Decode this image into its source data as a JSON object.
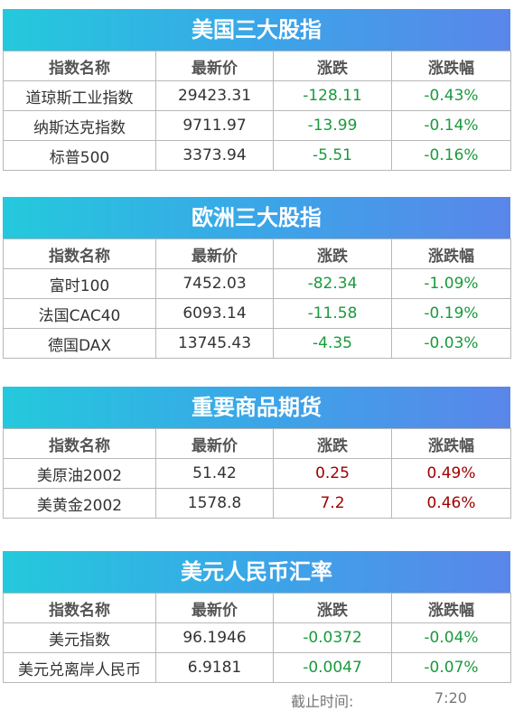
{
  "headers": [
    "指数名称",
    "最新价",
    "涨跌",
    "涨跌幅"
  ],
  "sections": [
    {
      "title": "美国三大股指",
      "rows": [
        {
          "name": "道琼斯工业指数",
          "price": "29423.31",
          "change": "-128.11",
          "pct": "-0.43%"
        },
        {
          "name": "纳斯达克指数",
          "price": "9711.97",
          "change": "-13.99",
          "pct": "-0.14%"
        },
        {
          "name": "标普500",
          "price": "3373.94",
          "change": "-5.51",
          "pct": "-0.16%"
        }
      ]
    },
    {
      "title": "欧洲三大股指",
      "rows": [
        {
          "name": "富时100",
          "price": "7452.03",
          "change": "-82.34",
          "pct": "-1.09%"
        },
        {
          "name": "法国CAC40",
          "price": "6093.14",
          "change": "-11.58",
          "pct": "-0.19%"
        },
        {
          "name": "德国DAX",
          "price": "13745.43",
          "change": "-4.35",
          "pct": "-0.03%"
        }
      ]
    },
    {
      "title": "重要商品期货",
      "rows": [
        {
          "name": "美原油2002",
          "price": "51.42",
          "change": "0.25",
          "pct": "0.49%"
        },
        {
          "name": "美黄金2002",
          "price": "1578.8",
          "change": "7.2",
          "pct": "0.46%"
        }
      ]
    },
    {
      "title": "美元人民币汇率",
      "rows": [
        {
          "name": "美元指数",
          "price": "96.1946",
          "change": "-0.0372",
          "pct": "-0.04%"
        },
        {
          "name": "美元兑离岸人民币",
          "price": "6.9181",
          "change": "-0.0047",
          "pct": "-0.07%"
        }
      ]
    }
  ],
  "footer": {
    "label": "截止时间:",
    "time": "7:20"
  },
  "colors": {
    "down": "#1a9a3c",
    "up": "#a00000",
    "banner_start": "#24c9dc",
    "banner_end": "#5a86ea"
  }
}
